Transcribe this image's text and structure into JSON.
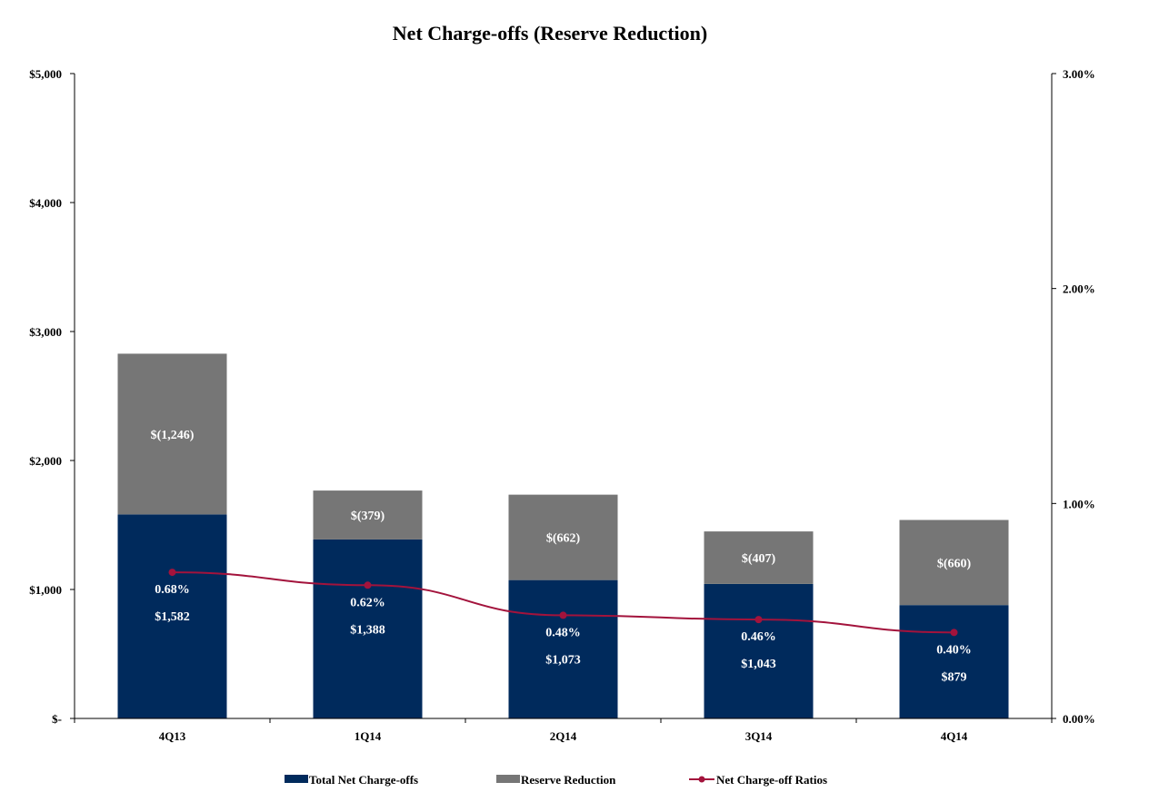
{
  "chart_data": {
    "type": "bar",
    "title": "Net Charge-offs (Reserve Reduction)",
    "categories": [
      "4Q13",
      "1Q14",
      "2Q14",
      "3Q14",
      "4Q14"
    ],
    "series": [
      {
        "name": "Total Net Charge-offs",
        "kind": "bar",
        "axis": "left",
        "color": "#002a5c",
        "values": [
          1582,
          1388,
          1073,
          1043,
          879
        ],
        "labels": [
          "$1,582",
          "$1,388",
          "$1,073",
          "$1,043",
          "$879"
        ]
      },
      {
        "name": "Reserve Reduction",
        "kind": "bar-stacked",
        "axis": "left",
        "color": "#767676",
        "values": [
          1246,
          379,
          662,
          407,
          660
        ],
        "labels": [
          "$(1,246)",
          "$(379)",
          "$(662)",
          "$(407)",
          "$(660)"
        ]
      },
      {
        "name": "Net Charge-off Ratios",
        "kind": "line",
        "axis": "right",
        "color": "#a3133c",
        "values": [
          0.68,
          0.62,
          0.48,
          0.46,
          0.4
        ],
        "labels": [
          "0.68%",
          "0.62%",
          "0.48%",
          "0.46%",
          "0.40%"
        ]
      }
    ],
    "y_left": {
      "ylim": [
        0,
        5000
      ],
      "ticks": [
        0,
        1000,
        2000,
        3000,
        4000,
        5000
      ],
      "tick_labels": [
        "$-",
        "$1,000",
        "$2,000",
        "$3,000",
        "$4,000",
        "$5,000"
      ]
    },
    "y_right": {
      "ylim": [
        0,
        3
      ],
      "ticks": [
        0,
        1,
        2,
        3
      ],
      "tick_labels": [
        "0.00%",
        "1.00%",
        "2.00%",
        "3.00%"
      ]
    },
    "grid": false,
    "legend_position": "bottom"
  }
}
